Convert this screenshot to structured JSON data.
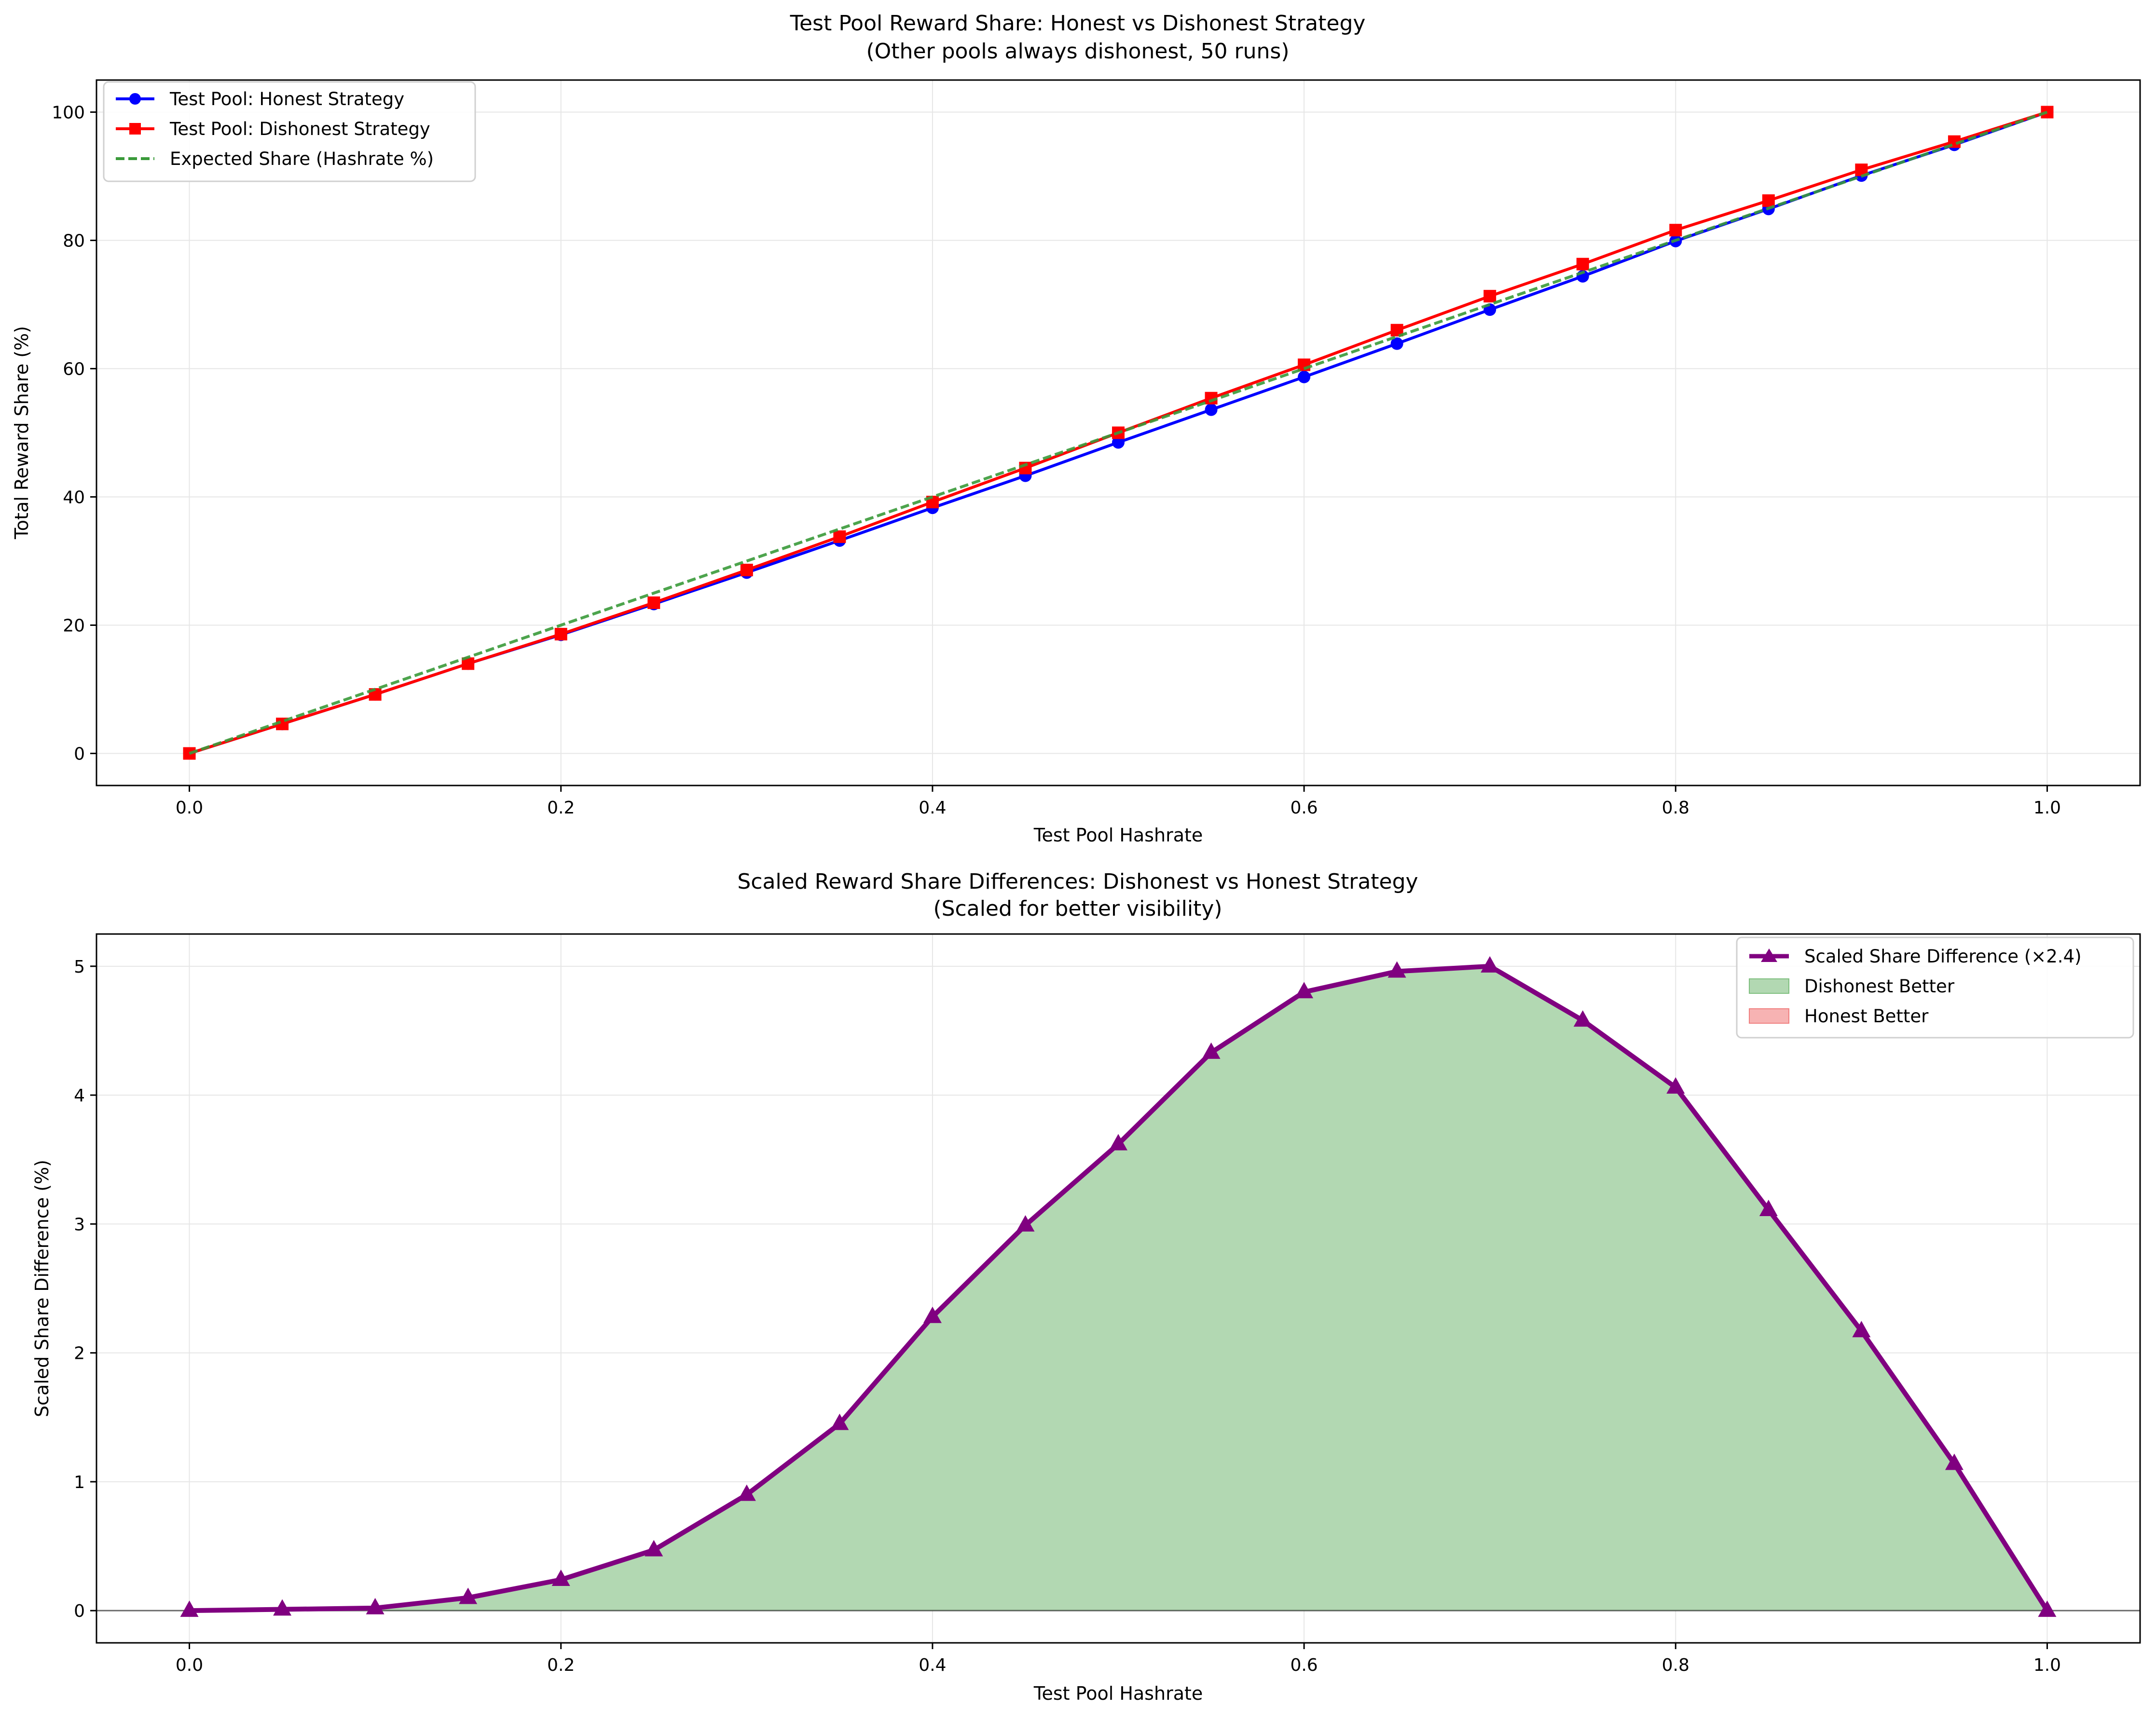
{
  "colors": {
    "honest": "#0000ff",
    "dishonest": "#ff0000",
    "expected": "#3a9a3a",
    "scaled": "#800080",
    "dishonest_better_fill": "#b2d8b2",
    "honest_better_fill": "#f7b3b3",
    "grid": "#e6e6e6"
  },
  "chart_data": [
    {
      "type": "line",
      "title": "Test Pool Reward Share: Honest vs Dishonest Strategy",
      "subtitle": "(Other pools always dishonest, 50 runs)",
      "xlabel": "Test Pool Hashrate",
      "ylabel": "Total Reward Share (%)",
      "xlim": [
        -0.05,
        1.05
      ],
      "ylim": [
        -5,
        105
      ],
      "xticks": [
        0.0,
        0.2,
        0.4,
        0.6,
        0.8,
        1.0
      ],
      "xtick_labels": [
        "0.0",
        "0.2",
        "0.4",
        "0.6",
        "0.8",
        "1.0"
      ],
      "yticks": [
        0,
        20,
        40,
        60,
        80,
        100
      ],
      "ytick_labels": [
        "0",
        "20",
        "40",
        "60",
        "80",
        "100"
      ],
      "grid": true,
      "legend_position": "top-left",
      "x": [
        0.0,
        0.05,
        0.1,
        0.15,
        0.2,
        0.25,
        0.3,
        0.35,
        0.4,
        0.45,
        0.5,
        0.55,
        0.6,
        0.65,
        0.7,
        0.75,
        0.8,
        0.85,
        0.9,
        0.95,
        1.0
      ],
      "series": [
        {
          "name": "Test Pool: Honest Strategy",
          "marker": "circle",
          "values": [
            0.0,
            4.6,
            9.2,
            14.0,
            18.5,
            23.3,
            28.2,
            33.2,
            38.3,
            43.3,
            48.5,
            53.6,
            58.7,
            63.9,
            69.2,
            74.4,
            79.9,
            84.9,
            90.1,
            94.9,
            100.0
          ]
        },
        {
          "name": "Test Pool: Dishonest Strategy",
          "marker": "square",
          "values": [
            0.0,
            4.6,
            9.2,
            14.0,
            18.6,
            23.5,
            28.6,
            33.8,
            39.2,
            44.5,
            50.0,
            55.4,
            60.6,
            66.0,
            71.3,
            76.3,
            81.6,
            86.2,
            91.0,
            95.4,
            100.0
          ]
        },
        {
          "name": "Expected Share (Hashrate %)",
          "marker": "none",
          "dashed": true,
          "values": [
            0,
            5,
            10,
            15,
            20,
            25,
            30,
            35,
            40,
            45,
            50,
            55,
            60,
            65,
            70,
            75,
            80,
            85,
            90,
            95,
            100
          ]
        }
      ]
    },
    {
      "type": "area",
      "title": "Scaled Reward Share Differences: Dishonest vs Honest Strategy",
      "subtitle": "(Scaled for better visibility)",
      "xlabel": "Test Pool Hashrate",
      "ylabel": "Scaled Share Difference (%)",
      "xlim": [
        -0.05,
        1.05
      ],
      "ylim": [
        -0.25,
        5.25
      ],
      "xticks": [
        0.0,
        0.2,
        0.4,
        0.6,
        0.8,
        1.0
      ],
      "xtick_labels": [
        "0.0",
        "0.2",
        "0.4",
        "0.6",
        "0.8",
        "1.0"
      ],
      "yticks": [
        0,
        1,
        2,
        3,
        4,
        5
      ],
      "ytick_labels": [
        "0",
        "1",
        "2",
        "3",
        "4",
        "5"
      ],
      "grid": true,
      "legend_position": "top-right",
      "x": [
        0.0,
        0.05,
        0.1,
        0.15,
        0.2,
        0.25,
        0.3,
        0.35,
        0.4,
        0.45,
        0.5,
        0.55,
        0.6,
        0.65,
        0.7,
        0.75,
        0.8,
        0.85,
        0.9,
        0.95,
        1.0
      ],
      "series": [
        {
          "name": "Scaled Share Difference (×2.4)",
          "marker": "triangle",
          "values": [
            0.0,
            0.01,
            0.02,
            0.1,
            0.24,
            0.47,
            0.9,
            1.45,
            2.28,
            2.99,
            3.62,
            4.33,
            4.8,
            4.96,
            5.0,
            4.58,
            4.06,
            3.11,
            2.17,
            1.14,
            0.0
          ]
        }
      ],
      "legend_entries": [
        "Scaled Share Difference (×2.4)",
        "Dishonest Better",
        "Honest Better"
      ],
      "zero_line": true
    }
  ]
}
